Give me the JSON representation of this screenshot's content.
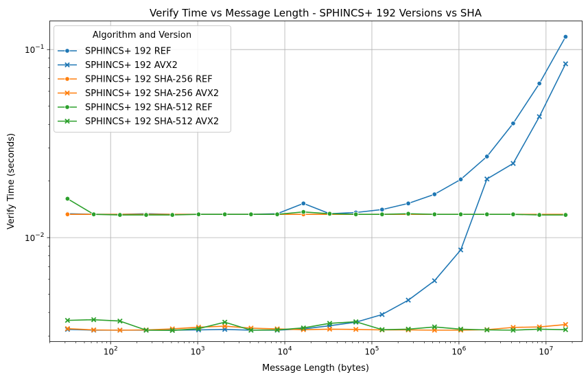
{
  "chart_data": {
    "type": "line",
    "title": "Verify Time vs Message Length - SPHINCS+ 192 Versions vs SHA",
    "xlabel": "Message Length (bytes)",
    "ylabel": "Verify Time (seconds)",
    "xscale": "log",
    "yscale": "log",
    "xlim": [
      20,
      26000000
    ],
    "ylim": [
      0.0028,
      0.142
    ],
    "grid": true,
    "legend_title": "Algorithm and Version",
    "legend_position": "top-left",
    "x_ticks": [
      {
        "value": 100,
        "base": "10",
        "exp": "2"
      },
      {
        "value": 1000,
        "base": "10",
        "exp": "3"
      },
      {
        "value": 10000,
        "base": "10",
        "exp": "4"
      },
      {
        "value": 100000,
        "base": "10",
        "exp": "5"
      },
      {
        "value": 1000000,
        "base": "10",
        "exp": "6"
      },
      {
        "value": 10000000,
        "base": "10",
        "exp": "7"
      }
    ],
    "y_ticks": [
      {
        "value": 0.01,
        "base": "10",
        "exp": "−2"
      },
      {
        "value": 0.1,
        "base": "10",
        "exp": "−1"
      }
    ],
    "x": [
      32,
      64,
      128,
      256,
      512,
      1024,
      2048,
      4096,
      8192,
      16384,
      32768,
      65536,
      131072,
      262144,
      524288,
      1048576,
      2097152,
      4194304,
      8388608,
      16777216
    ],
    "series": [
      {
        "name": "SPHINCS+ 192 REF",
        "color": "#1f77b4",
        "marker": "circle",
        "values": [
          0.0134,
          0.0133,
          0.0133,
          0.0134,
          0.0133,
          0.0133,
          0.0133,
          0.0133,
          0.0134,
          0.0152,
          0.0134,
          0.0136,
          0.0141,
          0.0152,
          0.017,
          0.0204,
          0.027,
          0.0405,
          0.066,
          0.117
        ]
      },
      {
        "name": "SPHINCS+ 192 AVX2",
        "color": "#1f77b4",
        "marker": "x",
        "values": [
          0.00325,
          0.00322,
          0.00322,
          0.00322,
          0.00322,
          0.00323,
          0.00325,
          0.00322,
          0.00322,
          0.00327,
          0.0034,
          0.00355,
          0.0039,
          0.00465,
          0.0059,
          0.0086,
          0.0205,
          0.0248,
          0.044,
          0.084
        ]
      },
      {
        "name": "SPHINCS+ 192 SHA-256 REF",
        "color": "#ff7f0e",
        "marker": "circle",
        "values": [
          0.0133,
          0.0133,
          0.0133,
          0.0133,
          0.0133,
          0.0133,
          0.0133,
          0.0133,
          0.0133,
          0.0133,
          0.0133,
          0.0133,
          0.0133,
          0.0133,
          0.0133,
          0.0133,
          0.0133,
          0.0133,
          0.0133,
          0.0133
        ]
      },
      {
        "name": "SPHINCS+ 192 SHA-256 AVX2",
        "color": "#ff7f0e",
        "marker": "x",
        "values": [
          0.00328,
          0.00323,
          0.00322,
          0.00323,
          0.00327,
          0.00334,
          0.00338,
          0.0033,
          0.00327,
          0.00324,
          0.00326,
          0.00325,
          0.00323,
          0.00323,
          0.00322,
          0.00322,
          0.00324,
          0.00333,
          0.00335,
          0.00345
        ]
      },
      {
        "name": "SPHINCS+ 192 SHA-512 REF",
        "color": "#2ca02c",
        "marker": "circle",
        "values": [
          0.0161,
          0.0133,
          0.0132,
          0.0132,
          0.0132,
          0.0133,
          0.0133,
          0.0133,
          0.0133,
          0.0137,
          0.0134,
          0.0133,
          0.0133,
          0.0134,
          0.0133,
          0.0133,
          0.0133,
          0.0133,
          0.0132,
          0.0132
        ]
      },
      {
        "name": "SPHINCS+ 192 SHA-512 AVX2",
        "color": "#2ca02c",
        "marker": "x",
        "values": [
          0.00363,
          0.00366,
          0.0036,
          0.00322,
          0.00321,
          0.00328,
          0.00355,
          0.00322,
          0.00323,
          0.00331,
          0.0035,
          0.00357,
          0.00324,
          0.00326,
          0.00335,
          0.00326,
          0.00323,
          0.00322,
          0.00326,
          0.00324
        ]
      }
    ]
  }
}
